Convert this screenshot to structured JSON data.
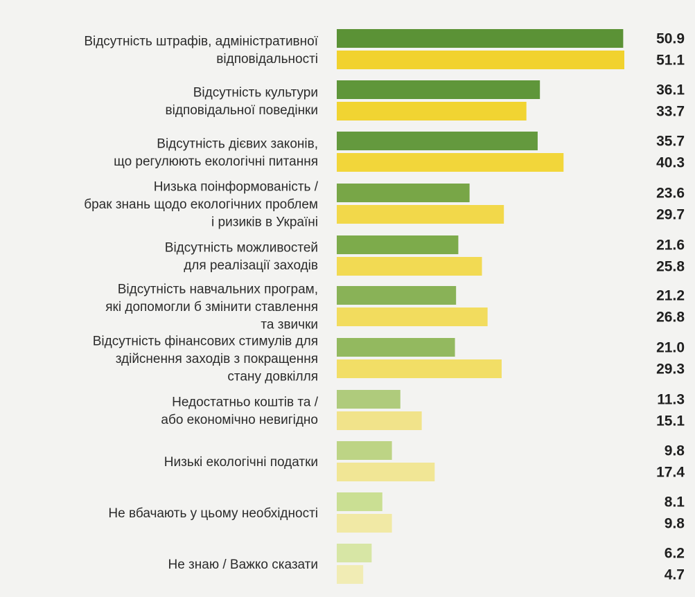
{
  "chart_data": {
    "type": "bar",
    "orientation": "horizontal",
    "legend": "none",
    "grid": false,
    "xlim": [
      0,
      51.1
    ],
    "categories": [
      [
        "Відсутність штрафів, адміністративної",
        "відповідальності"
      ],
      [
        "Відсутність культури",
        "відповідальної поведінки"
      ],
      [
        "Відсутність дієвих законів,",
        "що регулюють екологічні питання"
      ],
      [
        "Низька поінформованість /",
        "брак знань щодо екологічних проблем",
        "і ризиків в Україні"
      ],
      [
        "Відсутність можливостей",
        "для реалізації заходів"
      ],
      [
        "Відсутність навчальних програм,",
        "які допомогли б змінити ставлення",
        "та звички"
      ],
      [
        "Відсутність фінансових стимулів для",
        "здійснення заходів з покращення",
        "стану довкілля"
      ],
      [
        "Недостатньо коштів та /",
        "або економічно невигідно"
      ],
      [
        "Низькі екологічні податки"
      ],
      [
        "Не вбачають у цьому необхідності"
      ],
      [
        "Не знаю / Важко сказати"
      ]
    ],
    "series": [
      {
        "values": [
          50.9,
          36.1,
          35.7,
          23.6,
          21.6,
          21.2,
          21.0,
          11.3,
          9.8,
          8.1,
          6.2
        ],
        "value_labels": [
          "50.9",
          "36.1",
          "35.7",
          "23.6",
          "21.6",
          "21.2",
          "21.0",
          "11.3",
          "9.8",
          "8.1",
          "6.2"
        ],
        "colors": [
          "#5b9236",
          "#5f963a",
          "#64993e",
          "#78a647",
          "#7dab4b",
          "#89b257",
          "#93b95f",
          "#afcb7c",
          "#bdd485",
          "#cadf93",
          "#d7e6a5"
        ]
      },
      {
        "values": [
          51.1,
          33.7,
          40.3,
          29.7,
          25.8,
          26.8,
          29.3,
          15.1,
          17.4,
          9.8,
          4.7
        ],
        "value_labels": [
          "51.1",
          "33.7",
          "40.3",
          "29.7",
          "25.8",
          "26.8",
          "29.3",
          "15.1",
          "17.4",
          "9.8",
          "4.7"
        ],
        "colors": [
          "#f1d22e",
          "#f1d432",
          "#f2d63a",
          "#f2d84a",
          "#f2da53",
          "#f2dc5e",
          "#f2de66",
          "#f1e38a",
          "#f1e695",
          "#f1e9a5",
          "#f1ecb4"
        ]
      }
    ]
  }
}
